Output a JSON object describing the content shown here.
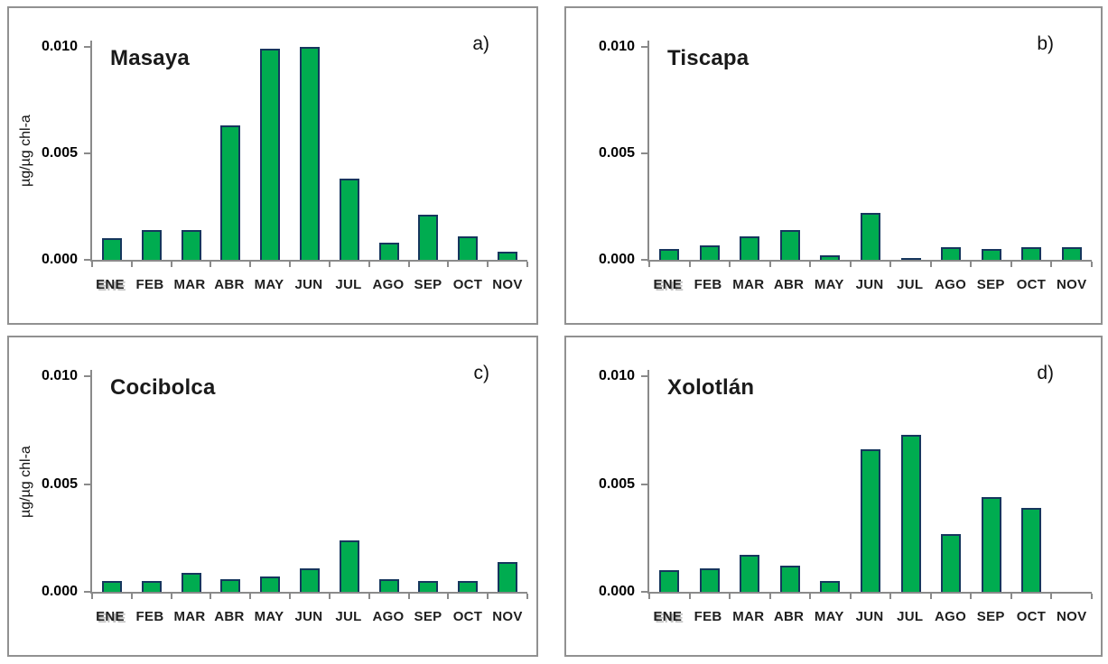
{
  "colors": {
    "bar_fill": "#00AC50",
    "bar_border": "#16365D",
    "axis": "#8A8A8A",
    "panel_border": "#919191"
  },
  "chart_data": [
    {
      "type": "bar",
      "panel_label": "a)",
      "title": "Masaya",
      "ylabel": "µg/µg chl-a",
      "xlabel": "",
      "categories": [
        "ENE",
        "FEB",
        "MAR",
        "ABR",
        "MAY",
        "JUN",
        "JUL",
        "AGO",
        "SEP",
        "OCT",
        "NOV"
      ],
      "values": [
        0.001,
        0.0014,
        0.0014,
        0.0063,
        0.0099,
        0.01,
        0.0038,
        0.0008,
        0.0021,
        0.0011,
        0.0004
      ],
      "yticks": [
        {
          "label": "0.000",
          "value": 0
        },
        {
          "label": "0.005",
          "value": 0.005
        },
        {
          "label": "0.010",
          "value": 0.01
        }
      ],
      "ylim": [
        0,
        0.0103
      ],
      "grid": false,
      "legend_position": "none"
    },
    {
      "type": "bar",
      "panel_label": "b)",
      "title": "Tiscapa",
      "ylabel": "",
      "xlabel": "",
      "categories": [
        "ENE",
        "FEB",
        "MAR",
        "ABR",
        "MAY",
        "JUN",
        "JUL",
        "AGO",
        "SEP",
        "OCT",
        "NOV"
      ],
      "values": [
        0.0005,
        0.0007,
        0.0011,
        0.0014,
        0.0002,
        0.0022,
        0.0001,
        0.0006,
        0.0005,
        0.0006,
        0.0006
      ],
      "yticks": [
        {
          "label": "0.000",
          "value": 0
        },
        {
          "label": "0.005",
          "value": 0.005
        },
        {
          "label": "0.010",
          "value": 0.01
        }
      ],
      "ylim": [
        0,
        0.0103
      ],
      "grid": false,
      "legend_position": "none"
    },
    {
      "type": "bar",
      "panel_label": "c)",
      "title": "Cocibolca",
      "ylabel": "µg/µg chl-a",
      "xlabel": "",
      "categories": [
        "ENE",
        "FEB",
        "MAR",
        "ABR",
        "MAY",
        "JUN",
        "JUL",
        "AGO",
        "SEP",
        "OCT",
        "NOV"
      ],
      "values": [
        0.0005,
        0.0005,
        0.0009,
        0.0006,
        0.0007,
        0.0011,
        0.0024,
        0.0006,
        0.0005,
        0.0005,
        0.0014
      ],
      "yticks": [
        {
          "label": "0.000",
          "value": 0
        },
        {
          "label": "0.005",
          "value": 0.005
        },
        {
          "label": "0.010",
          "value": 0.01
        }
      ],
      "ylim": [
        0,
        0.0103
      ],
      "grid": false,
      "legend_position": "none"
    },
    {
      "type": "bar",
      "panel_label": "d)",
      "title": "Xolotlán",
      "ylabel": "",
      "xlabel": "",
      "categories": [
        "ENE",
        "FEB",
        "MAR",
        "ABR",
        "MAY",
        "JUN",
        "JUL",
        "AGO",
        "SEP",
        "OCT",
        "NOV"
      ],
      "values": [
        0.001,
        0.0011,
        0.0017,
        0.0012,
        0.0005,
        0.0066,
        0.0073,
        0.0027,
        0.0044,
        0.0039,
        0
      ],
      "yticks": [
        {
          "label": "0.000",
          "value": 0
        },
        {
          "label": "0.005",
          "value": 0.005
        },
        {
          "label": "0.010",
          "value": 0.01
        }
      ],
      "ylim": [
        0,
        0.0103
      ],
      "grid": false,
      "legend_position": "none"
    }
  ]
}
